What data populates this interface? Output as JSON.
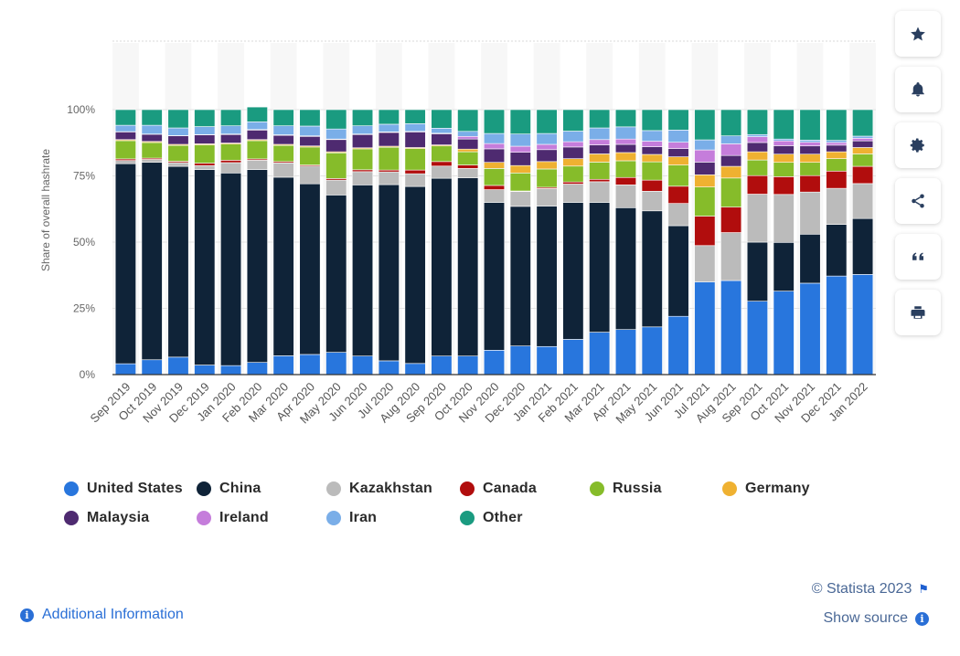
{
  "chart_data": {
    "type": "bar",
    "stacked": true,
    "ylabel": "Share of overall hashrate",
    "xlabel": "",
    "ylim": [
      0,
      100
    ],
    "y_ticks": [
      "0%",
      "25%",
      "50%",
      "75%",
      "100%"
    ],
    "categories": [
      "Sep 2019",
      "Oct 2019",
      "Nov 2019",
      "Dec 2019",
      "Jan 2020",
      "Feb 2020",
      "Mar 2020",
      "Apr 2020",
      "May 2020",
      "Jun 2020",
      "Jul 2020",
      "Aug 2020",
      "Sep 2020",
      "Oct 2020",
      "Nov 2020",
      "Dec 2020",
      "Jan 2021",
      "Feb 2021",
      "Mar 2021",
      "Apr 2021",
      "May 2021",
      "Jun 2021",
      "Jul 2021",
      "Aug 2021",
      "Sep 2021",
      "Oct 2021",
      "Nov 2021",
      "Dec 2021",
      "Jan 2022"
    ],
    "series": [
      {
        "name": "United States",
        "color": "#2876dd",
        "values": [
          4.1,
          5.6,
          6.6,
          3.6,
          3.4,
          4.6,
          7.1,
          7.6,
          8.4,
          7.0,
          5.2,
          4.2,
          7.0,
          7.0,
          9.2,
          10.8,
          10.6,
          13.3,
          16.0,
          17.0,
          18.0,
          22.0,
          35.0,
          35.5,
          27.7,
          31.5,
          34.5,
          37.2,
          37.8
        ]
      },
      {
        "name": "China",
        "color": "#0f2338",
        "values": [
          75.5,
          74.5,
          72.0,
          73.8,
          72.7,
          72.8,
          67.4,
          64.4,
          59.4,
          64.6,
          66.5,
          66.8,
          67.1,
          67.3,
          55.8,
          52.7,
          53.0,
          51.7,
          49.0,
          46.0,
          43.8,
          34.2,
          0,
          0,
          22.3,
          18.4,
          18.5,
          19.5,
          21.1
        ]
      },
      {
        "name": "Kazakhstan",
        "color": "#bbbbbb",
        "values": [
          1.2,
          1.1,
          1.4,
          1.5,
          3.9,
          3.5,
          5.4,
          6.7,
          5.6,
          5.0,
          4.8,
          4.8,
          4.6,
          3.5,
          4.8,
          5.6,
          6.6,
          6.9,
          7.8,
          8.6,
          7.4,
          8.4,
          13.7,
          18.1,
          18.1,
          18.1,
          15.9,
          13.6,
          13.2
        ]
      },
      {
        "name": "Canada",
        "color": "#b10d0d",
        "values": [
          0.6,
          0.5,
          0.5,
          0.9,
          0.9,
          0.5,
          0.5,
          0.4,
          0.6,
          0.7,
          0.7,
          1.4,
          1.7,
          1.3,
          1.6,
          0.2,
          0.5,
          0.8,
          0.9,
          2.8,
          4.2,
          6.5,
          11.1,
          9.6,
          7.0,
          6.7,
          6.2,
          6.5,
          6.5
        ]
      },
      {
        "name": "Russia",
        "color": "#86bc2a",
        "values": [
          6.9,
          5.9,
          6.0,
          6.9,
          6.1,
          6.9,
          6.1,
          6.8,
          9.7,
          7.9,
          8.6,
          8.1,
          5.9,
          5.0,
          6.4,
          6.8,
          6.9,
          6.0,
          6.5,
          6.3,
          6.9,
          8.0,
          11.0,
          11.0,
          5.9,
          5.4,
          5.0,
          4.7,
          4.7
        ]
      },
      {
        "name": "Germany",
        "color": "#efb131",
        "values": [
          0.4,
          0.4,
          0.4,
          0.4,
          0.4,
          0.4,
          0.4,
          0.4,
          0.4,
          0.4,
          0.4,
          0.4,
          0.4,
          1.0,
          2.3,
          2.8,
          2.8,
          2.8,
          3.1,
          3.1,
          2.8,
          3.1,
          4.6,
          4.4,
          3.1,
          3.1,
          3.1,
          2.6,
          2.4
        ]
      },
      {
        "name": "Malaysia",
        "color": "#4e2a70",
        "values": [
          2.9,
          2.7,
          3.2,
          3.4,
          3.2,
          3.6,
          3.4,
          3.6,
          4.6,
          5.0,
          5.2,
          5.9,
          4.2,
          3.8,
          5.1,
          5.0,
          4.5,
          4.4,
          3.4,
          3.1,
          2.9,
          3.1,
          4.8,
          4.1,
          3.5,
          3.2,
          3.1,
          2.5,
          2.5
        ]
      },
      {
        "name": "Ireland",
        "color": "#c57ddb",
        "values": [
          0.1,
          0.1,
          0.1,
          0.1,
          0.2,
          0.2,
          0.2,
          0.2,
          0.2,
          0.2,
          0.2,
          0.2,
          0.2,
          1.0,
          2.0,
          2.3,
          2.0,
          2.0,
          2.0,
          2.0,
          2.1,
          2.4,
          4.6,
          4.4,
          2.2,
          1.8,
          1.4,
          1.0,
          1.0
        ]
      },
      {
        "name": "Iran",
        "color": "#7aaee8",
        "values": [
          2.4,
          3.3,
          2.9,
          3.0,
          3.1,
          2.9,
          3.4,
          3.7,
          3.8,
          3.1,
          2.9,
          2.9,
          1.9,
          1.9,
          3.8,
          4.6,
          4.1,
          4.0,
          4.4,
          4.6,
          4.0,
          4.6,
          3.8,
          3.0,
          0.8,
          0.7,
          0.8,
          0.8,
          0.8
        ]
      },
      {
        "name": "Other",
        "color": "#1a9b80",
        "values": [
          5.9,
          5.9,
          6.9,
          6.4,
          6.1,
          5.6,
          6.1,
          6.2,
          7.3,
          6.1,
          5.5,
          5.3,
          7.0,
          8.2,
          9.0,
          9.2,
          9.0,
          8.1,
          6.9,
          6.5,
          7.9,
          7.7,
          11.4,
          9.9,
          9.4,
          11.1,
          11.5,
          11.6,
          10.0
        ]
      }
    ]
  },
  "legend_rows": [
    [
      "United States",
      "China",
      "Kazakhstan",
      "Canada",
      "Russia",
      "Germany"
    ],
    [
      "Malaysia",
      "Ireland",
      "Iran",
      "Other"
    ]
  ],
  "toolbar": [
    {
      "icon": "star-icon",
      "name": "favorite-button"
    },
    {
      "icon": "bell-icon",
      "name": "notification-button"
    },
    {
      "icon": "gear-icon",
      "name": "settings-button"
    },
    {
      "icon": "share-icon",
      "name": "share-button"
    },
    {
      "icon": "quote-icon",
      "name": "cite-button"
    },
    {
      "icon": "print-icon",
      "name": "print-button"
    }
  ],
  "footer": {
    "additional_info": "Additional Information",
    "credit": "© Statista 2023",
    "show_source": "Show source",
    "info_glyph": "i",
    "flag_glyph": "⚑"
  }
}
